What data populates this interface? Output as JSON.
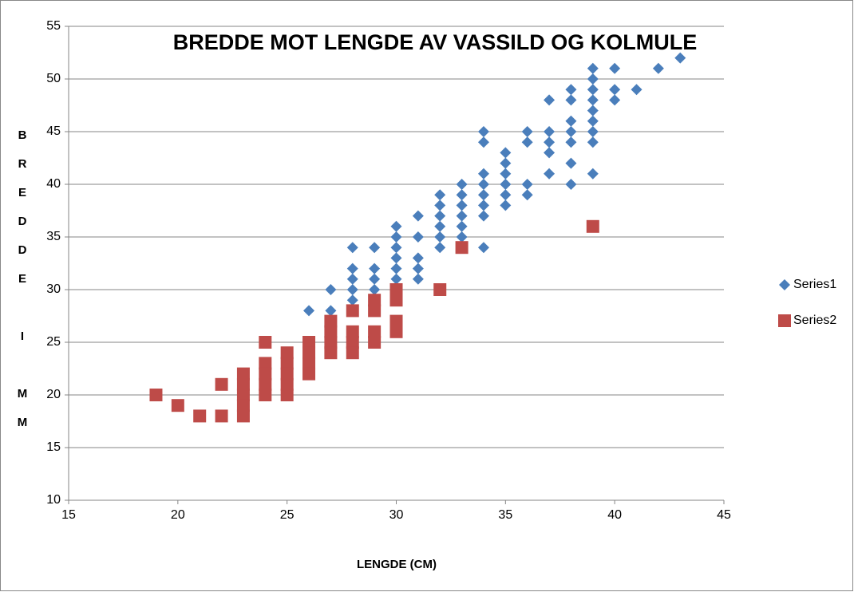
{
  "chart_data": {
    "type": "scatter",
    "title": "BREDDE MOT LENGDE AV VASSILD OG KOLMULE",
    "xlabel": "LENGDE (CM)",
    "ylabel": "BREDDE I MM",
    "xlim": [
      15,
      45
    ],
    "xticks": [
      15,
      20,
      25,
      30,
      35,
      40,
      45
    ],
    "ylim": [
      10,
      55
    ],
    "yticks": [
      10,
      15,
      20,
      25,
      30,
      35,
      40,
      45,
      50,
      55
    ],
    "grid": true,
    "legend": "right",
    "series": [
      {
        "name": "Series1",
        "color": "#4a7ebb",
        "marker": "diamond",
        "x": [
          26,
          27,
          27,
          28,
          28,
          28,
          28,
          28,
          29,
          29,
          29,
          29,
          30,
          30,
          30,
          30,
          30,
          30,
          31,
          31,
          31,
          31,
          31,
          32,
          32,
          32,
          32,
          32,
          32,
          33,
          33,
          33,
          33,
          33,
          33,
          34,
          34,
          34,
          34,
          34,
          34,
          34,
          34,
          35,
          35,
          35,
          35,
          35,
          35,
          36,
          36,
          36,
          36,
          37,
          37,
          37,
          37,
          37,
          38,
          38,
          38,
          38,
          38,
          38,
          38,
          39,
          39,
          39,
          39,
          39,
          39,
          39,
          39,
          39,
          40,
          40,
          40,
          41,
          42,
          43
        ],
        "values": [
          28,
          30,
          28,
          34,
          32,
          31,
          30,
          29,
          34,
          32,
          31,
          30,
          36,
          35,
          34,
          33,
          32,
          31,
          37,
          35,
          33,
          32,
          31,
          39,
          38,
          37,
          36,
          35,
          34,
          40,
          39,
          38,
          37,
          36,
          35,
          45,
          44,
          41,
          40,
          39,
          38,
          37,
          34,
          43,
          42,
          41,
          40,
          39,
          38,
          45,
          44,
          40,
          39,
          48,
          45,
          44,
          43,
          41,
          49,
          48,
          46,
          45,
          44,
          42,
          40,
          51,
          50,
          49,
          48,
          47,
          46,
          45,
          44,
          41,
          51,
          49,
          48,
          49,
          51,
          52
        ]
      },
      {
        "name": "Series2",
        "color": "#be4b48",
        "marker": "square",
        "x": [
          19,
          20,
          21,
          22,
          22,
          23,
          23,
          23,
          23,
          23,
          24,
          24,
          24,
          24,
          24,
          25,
          25,
          25,
          25,
          25,
          26,
          26,
          26,
          26,
          27,
          27,
          27,
          27,
          28,
          28,
          28,
          28,
          29,
          29,
          29,
          29,
          30,
          30,
          30,
          30,
          32,
          33,
          39
        ],
        "values": [
          20,
          19,
          18,
          21,
          18,
          22,
          21,
          20,
          19,
          18,
          25,
          23,
          22,
          21,
          20,
          24,
          23,
          22,
          21,
          20,
          25,
          24,
          23,
          22,
          27,
          26,
          25,
          24,
          28,
          26,
          25,
          24,
          29,
          28,
          26,
          25,
          30,
          29,
          27,
          26,
          30,
          34,
          36
        ]
      }
    ]
  }
}
